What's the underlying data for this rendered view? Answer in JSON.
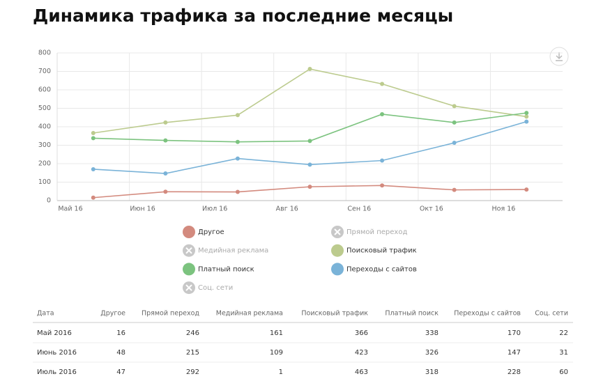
{
  "chart_data": {
    "type": "line",
    "title": "Динамика трафика за последние месяцы",
    "categories": [
      "Май 16",
      "Июн 16",
      "Июл 16",
      "Авг 16",
      "Сен 16",
      "Окт 16",
      "Ноя 16"
    ],
    "ylim": [
      0,
      800
    ],
    "yticks": [
      0,
      100,
      200,
      300,
      400,
      500,
      600,
      700,
      800
    ],
    "grid": true,
    "series": [
      {
        "name": "Другое",
        "color": "#d38a7e",
        "visible": true,
        "values": [
          16,
          48,
          47,
          75,
          82,
          58,
          60
        ]
      },
      {
        "name": "Прямой переход",
        "visible": false
      },
      {
        "name": "Медийная реклама",
        "visible": false
      },
      {
        "name": "Поисковый трафик",
        "color": "#bccb8e",
        "visible": true,
        "values": [
          366,
          423,
          463,
          713,
          632,
          512,
          455
        ]
      },
      {
        "name": "Платный поиск",
        "color": "#7cc37f",
        "visible": true,
        "values": [
          338,
          326,
          318,
          323,
          468,
          423,
          475
        ]
      },
      {
        "name": "Переходы с сайтов",
        "color": "#7ab3d8",
        "visible": true,
        "values": [
          170,
          147,
          228,
          195,
          217,
          313,
          428
        ]
      },
      {
        "name": "Соц. сети",
        "visible": false
      }
    ]
  },
  "table": {
    "columns": [
      "Дата",
      "Другое",
      "Прямой переход",
      "Медийная реклама",
      "Поисковый трафик",
      "Платный поиск",
      "Переходы с сайтов",
      "Соц. сети"
    ],
    "rows": [
      [
        "Май 2016",
        16,
        246,
        161,
        366,
        338,
        170,
        22
      ],
      [
        "Июнь 2016",
        48,
        215,
        109,
        423,
        326,
        147,
        31
      ],
      [
        "Июль 2016",
        47,
        292,
        1,
        463,
        318,
        228,
        60
      ]
    ]
  }
}
